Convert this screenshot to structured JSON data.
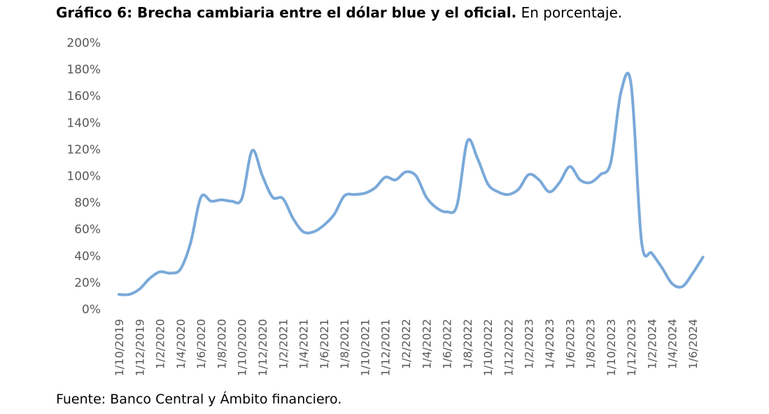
{
  "title_bold": "Gráfico 6: Brecha cambiaria entre el dólar blue y el oficial.",
  "title_rest": "En porcentaje.",
  "source": "Fuente: Banco Central y Ámbito financiero.",
  "chart_data": {
    "type": "line",
    "title": "Gráfico 6: Brecha cambiaria entre el dólar blue y el oficial. En porcentaje.",
    "xlabel": "",
    "ylabel": "",
    "ylim": [
      0,
      200
    ],
    "yticks": [
      "0%",
      "20%",
      "40%",
      "60%",
      "80%",
      "100%",
      "120%",
      "140%",
      "160%",
      "180%",
      "200%"
    ],
    "xticks": [
      "1/10/2019",
      "1/12/2019",
      "1/2/2020",
      "1/4/2020",
      "1/6/2020",
      "1/8/2020",
      "1/10/2020",
      "1/12/2020",
      "1/2/2021",
      "1/4/2021",
      "1/6/2021",
      "1/8/2021",
      "1/10/2021",
      "1/12/2021",
      "1/2/2022",
      "1/4/2022",
      "1/6/2022",
      "1/8/2022",
      "1/10/2022",
      "1/12/2022",
      "1/2/2023",
      "1/4/2023",
      "1/6/2023",
      "1/8/2023",
      "1/10/2023",
      "1/12/2023",
      "1/2/2024",
      "1/4/2024",
      "1/6/2024"
    ],
    "grid": false,
    "line_color": "#7aa9d9",
    "series": [
      {
        "values": [
          [
            0,
            11
          ],
          [
            0.5,
            11
          ],
          [
            1,
            15
          ],
          [
            1.5,
            23
          ],
          [
            2,
            28
          ],
          [
            2.5,
            27
          ],
          [
            3,
            30
          ],
          [
            3.5,
            50
          ],
          [
            4,
            84
          ],
          [
            4.5,
            81
          ],
          [
            5,
            82
          ],
          [
            5.5,
            81
          ],
          [
            6,
            83
          ],
          [
            6.5,
            119
          ],
          [
            7,
            100
          ],
          [
            7.5,
            84
          ],
          [
            8,
            83
          ],
          [
            8.5,
            68
          ],
          [
            9,
            58
          ],
          [
            9.5,
            58
          ],
          [
            10,
            63
          ],
          [
            10.5,
            71
          ],
          [
            11,
            85
          ],
          [
            11.5,
            86
          ],
          [
            12,
            87
          ],
          [
            12.5,
            91
          ],
          [
            13,
            99
          ],
          [
            13.5,
            97
          ],
          [
            14,
            103
          ],
          [
            14.5,
            100
          ],
          [
            15,
            84
          ],
          [
            15.5,
            76
          ],
          [
            16,
            73
          ],
          [
            16.5,
            78
          ],
          [
            17,
            126
          ],
          [
            17.5,
            113
          ],
          [
            18,
            94
          ],
          [
            18.5,
            88
          ],
          [
            19,
            86
          ],
          [
            19.5,
            90
          ],
          [
            20,
            101
          ],
          [
            20.5,
            97
          ],
          [
            21,
            88
          ],
          [
            21.5,
            95
          ],
          [
            22,
            107
          ],
          [
            22.5,
            97
          ],
          [
            23,
            95
          ],
          [
            23.5,
            101
          ],
          [
            24,
            110
          ],
          [
            24.5,
            163
          ],
          [
            25,
            168
          ],
          [
            25.5,
            51
          ],
          [
            26,
            42
          ],
          [
            26.5,
            31
          ],
          [
            27,
            19
          ],
          [
            27.5,
            17
          ],
          [
            28,
            27
          ],
          [
            28.5,
            39
          ]
        ]
      }
    ]
  }
}
